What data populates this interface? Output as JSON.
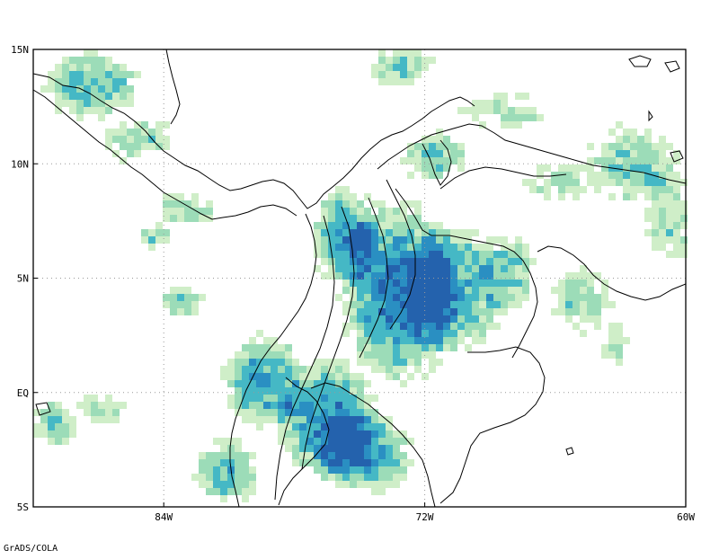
{
  "map": {
    "lon_range": [
      -90,
      -60
    ],
    "lat_range": [
      -5,
      15
    ],
    "lat_labels": [
      {
        "lat": 15,
        "text": "15N"
      },
      {
        "lat": 10,
        "text": "10N"
      },
      {
        "lat": 5,
        "text": "5N"
      },
      {
        "lat": 0,
        "text": "EQ"
      },
      {
        "lat": -5,
        "text": "5S"
      }
    ],
    "lon_labels": [
      {
        "lon": -84,
        "text": "84W"
      },
      {
        "lon": -72,
        "text": "72W"
      },
      {
        "lon": -60,
        "text": "60W"
      }
    ],
    "grid": true,
    "shading_colors": [
      "#cfeec8",
      "#9cdcb8",
      "#45b8c5",
      "#2a8fc2",
      "#2462ad"
    ],
    "coastline_color": "#000000"
  },
  "credit": "GrADS/COLA"
}
